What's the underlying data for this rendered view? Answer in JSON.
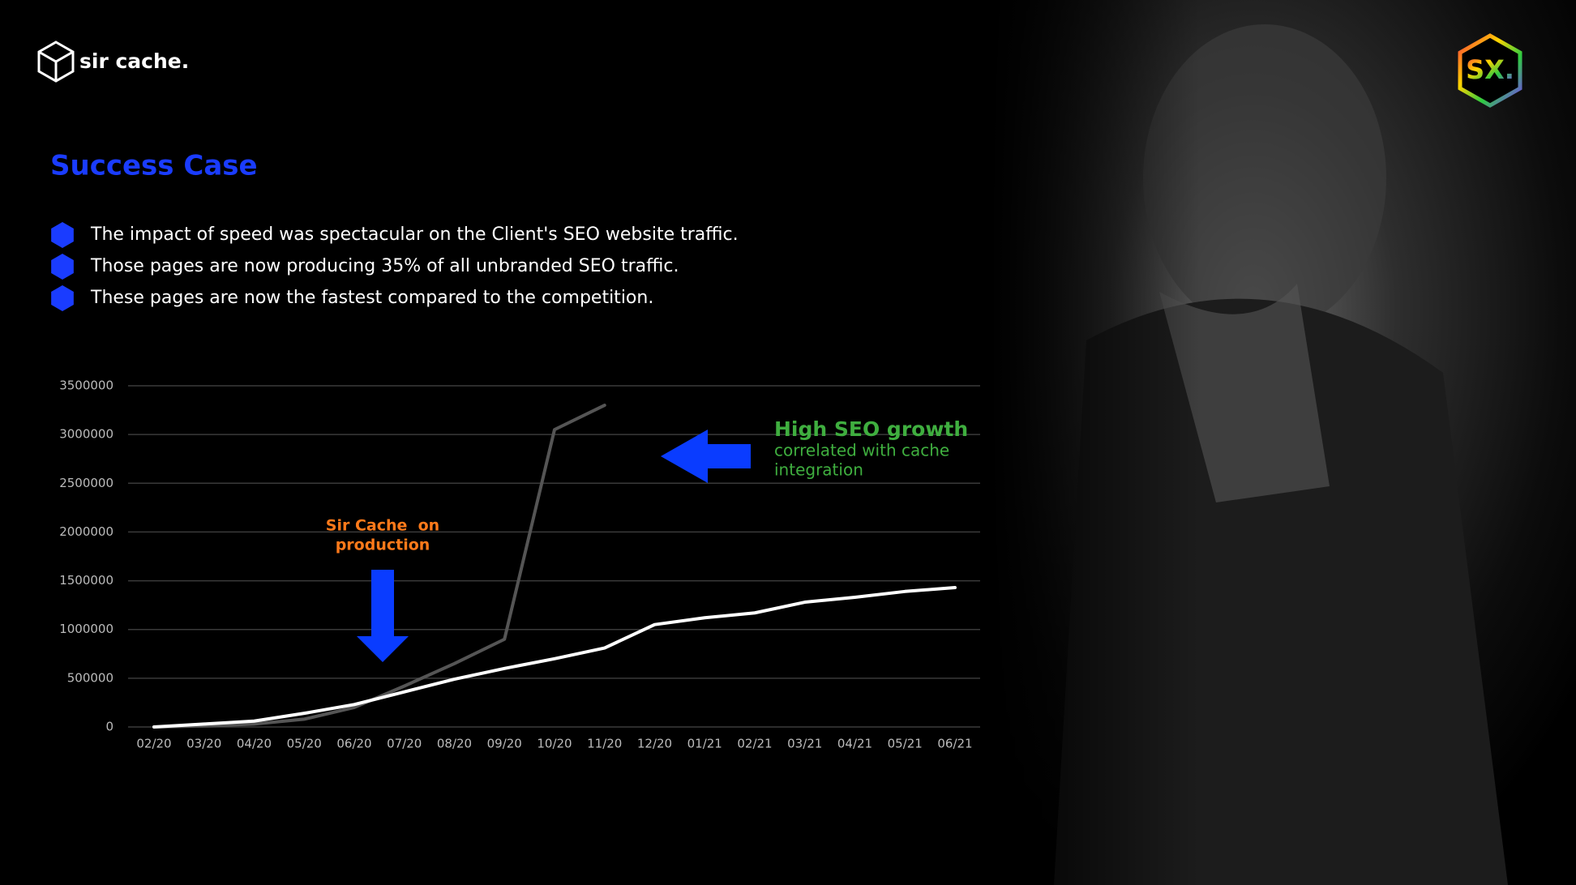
{
  "brand": {
    "name": "sir cache.",
    "badge": "SX."
  },
  "heading": "Success Case",
  "bullets": [
    "The impact of speed was spectacular on the Client's SEO website traffic.",
    "Those pages are now producing 35% of all unbranded SEO traffic.",
    "These pages are now the fastest compared to the competition."
  ],
  "chart_data": {
    "type": "line",
    "categories": [
      "02/20",
      "03/20",
      "04/20",
      "05/20",
      "06/20",
      "07/20",
      "08/20",
      "09/20",
      "10/20",
      "11/20",
      "12/20",
      "01/21",
      "02/21",
      "03/21",
      "04/21",
      "05/21",
      "06/21"
    ],
    "series": [
      {
        "color": "#ffffff",
        "values": [
          0,
          30000,
          60000,
          140000,
          230000,
          360000,
          490000,
          600000,
          700000,
          810000,
          1050000,
          1120000,
          1170000,
          1280000,
          1330000,
          1390000,
          1430000
        ]
      },
      {
        "color": "#555555",
        "values": [
          0,
          10000,
          30000,
          80000,
          200000,
          420000,
          650000,
          900000,
          3050000,
          3300000,
          null,
          null,
          null,
          null,
          null,
          null,
          null
        ]
      }
    ],
    "ylim": [
      0,
      3500000
    ],
    "yticks": [
      0,
      500000,
      1000000,
      1500000,
      2000000,
      2500000,
      3000000,
      3500000
    ],
    "grid": true,
    "annotations": [
      {
        "color": "#ff7a1a",
        "lines": [
          "Sir Cache  on",
          "production"
        ]
      },
      {
        "color": "#3fae3f",
        "title": "High SEO growth",
        "lines": [
          "correlated with cache",
          "integration"
        ]
      }
    ]
  }
}
